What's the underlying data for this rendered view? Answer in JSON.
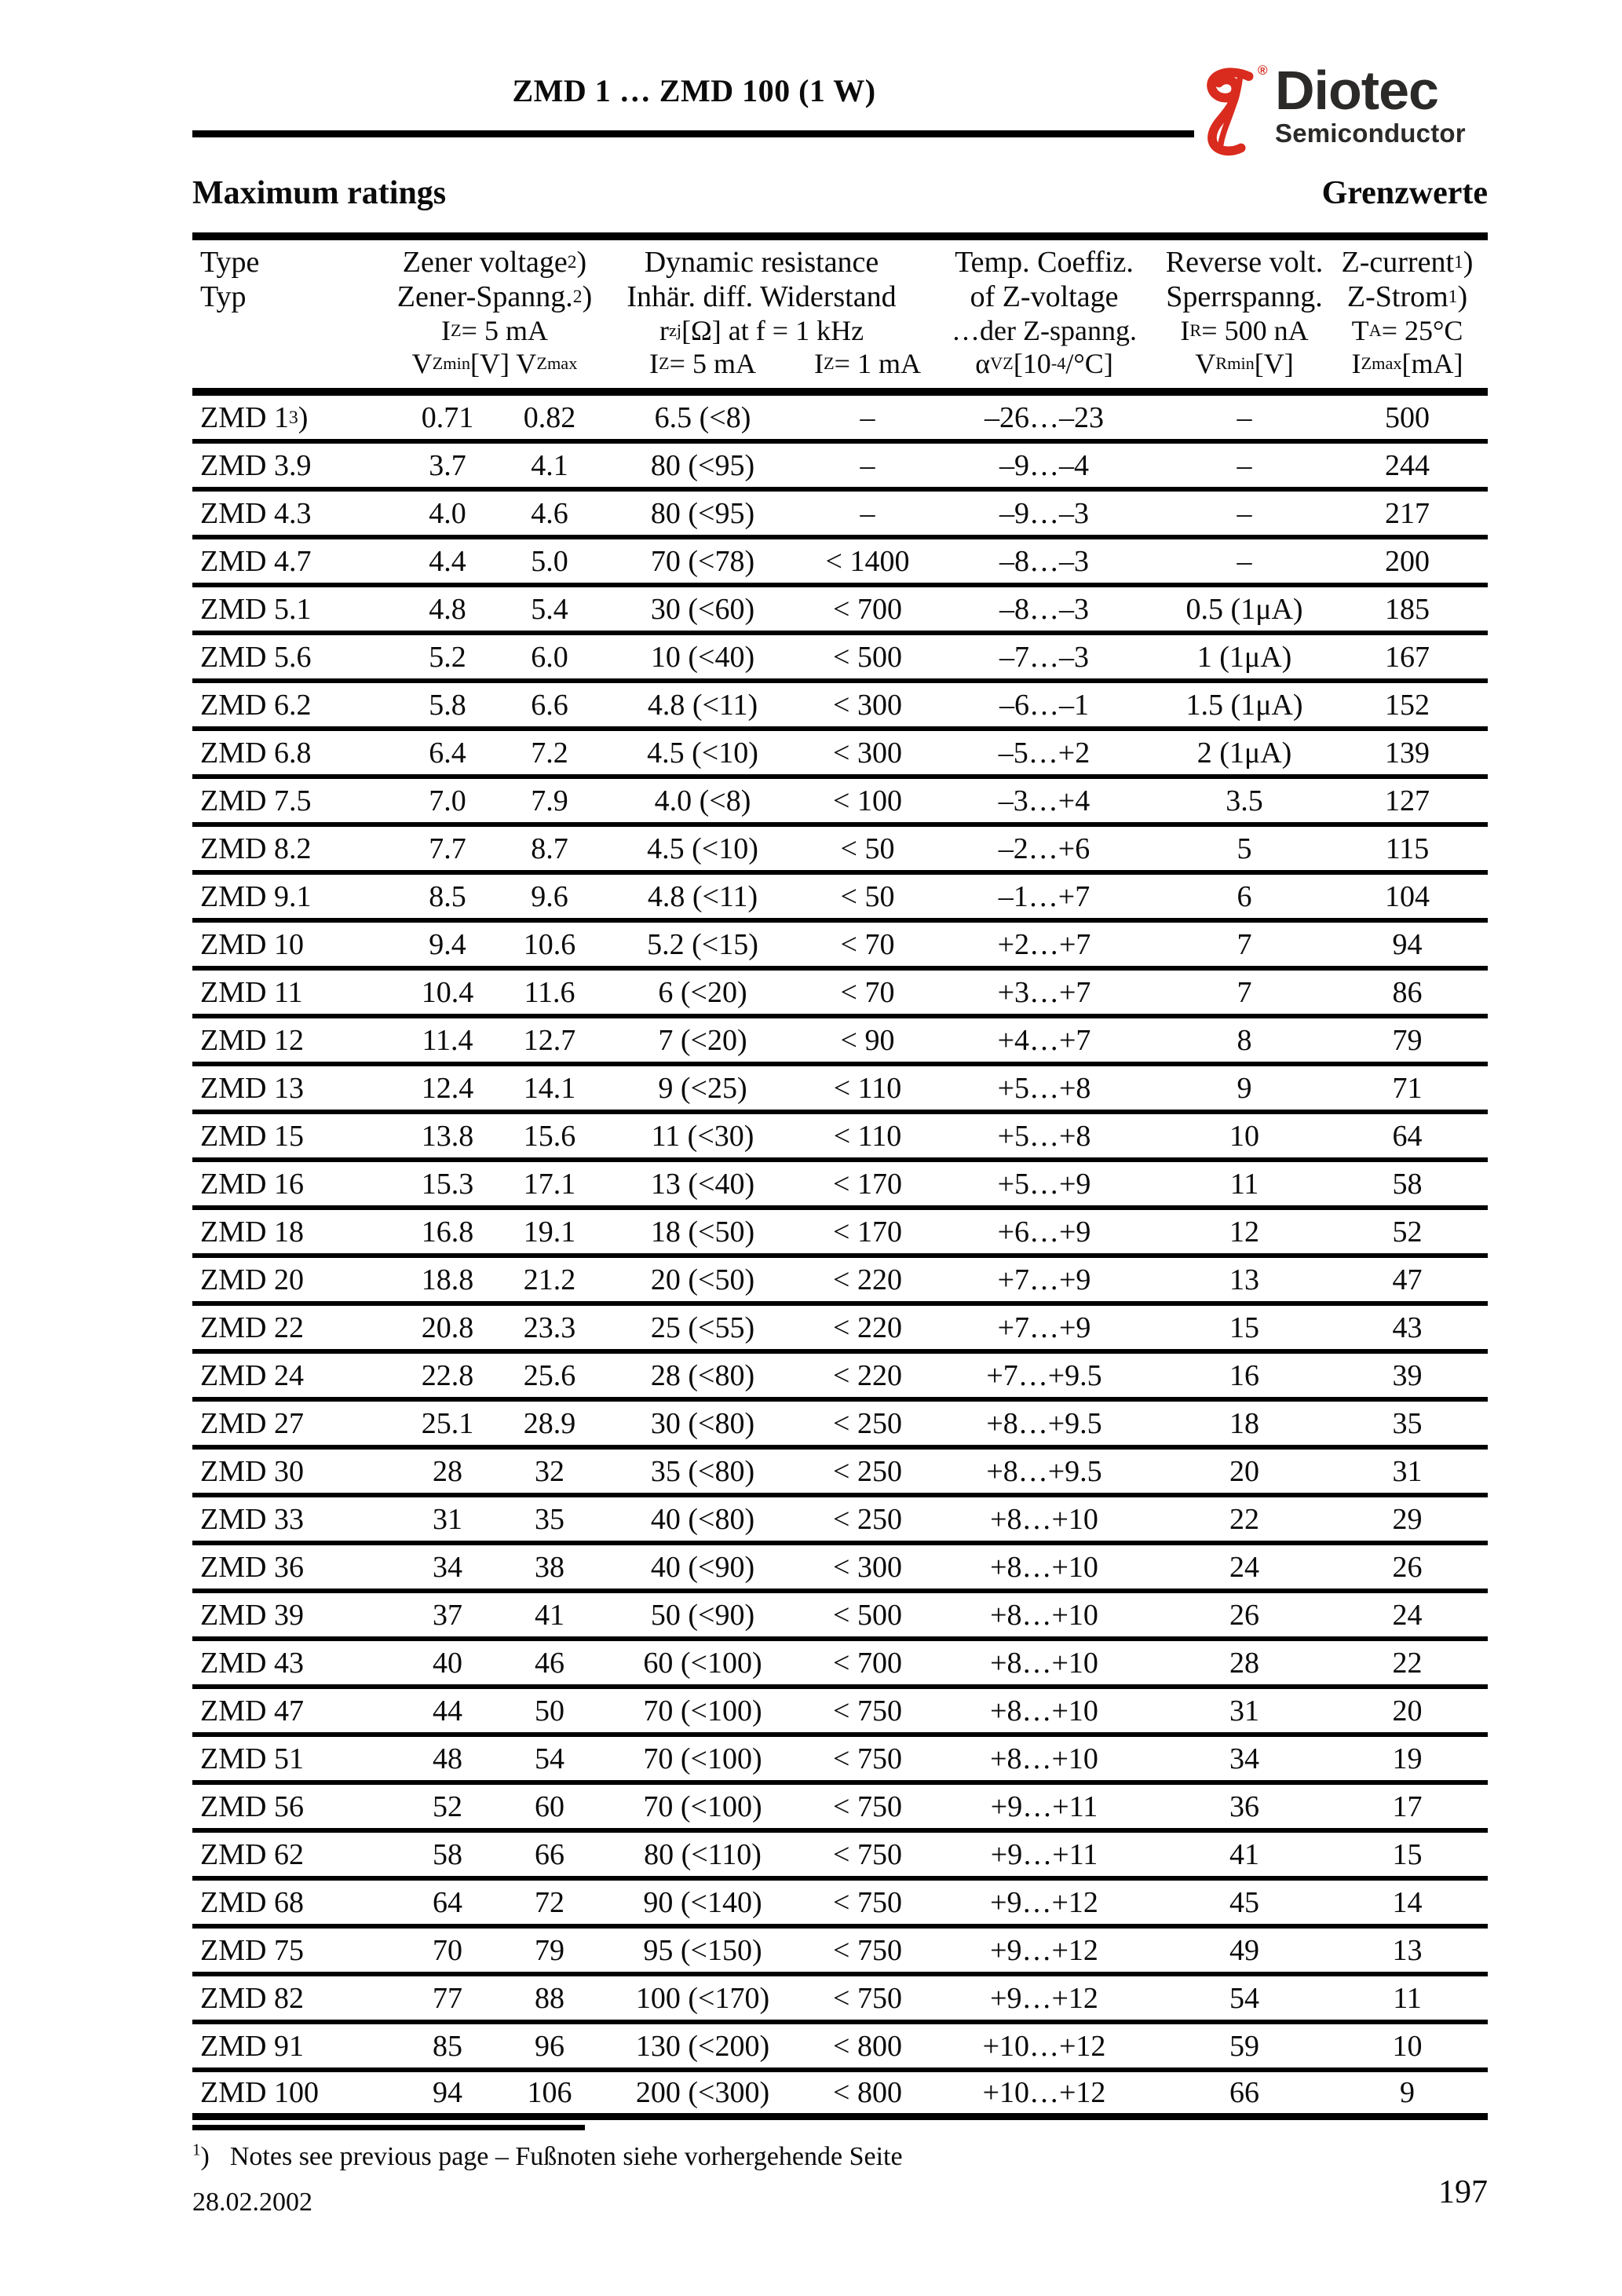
{
  "page": {
    "title": "ZMD 1 … ZMD 100 (1 W)",
    "section_left": "Maximum ratings",
    "section_right": "Grenzwerte",
    "footnote_marker": "^{1})",
    "footnote_text": "Notes see previous page – Fußnoten siehe vorhergehende Seite",
    "date": "28.02.2002",
    "page_number": "197"
  },
  "logo": {
    "name": "Diotec",
    "subtitle": "Semiconductor",
    "registered": "®",
    "red": "#d92b1e",
    "dark": "#2b2a29"
  },
  "table": {
    "header": {
      "type_l1": "Type",
      "type_l2": "Typ",
      "zener_l1": "Zener voltage ^{2})",
      "zener_l2": "Zener-Spanng.^{2})",
      "zener_l3": "I_{Z} = 5 mA",
      "zener_l4": "V_{Zmin}  [V]  V_{Zmax}",
      "dyn_l1": "Dynamic resistance",
      "dyn_l2": "Inhär. diff. Widerstand",
      "dyn_l3": "r_{zj} [Ω] at f = 1 kHz",
      "dyn_l4a": "I_{Z} = 5 mA",
      "dyn_l4b": "I_{Z} = 1 mA",
      "tc_l1": "Temp. Coeffiz.",
      "tc_l2": "of Z-voltage",
      "tc_l3": "…der Z-spanng.",
      "tc_l4": "α_{VZ} [10^{-4} /°C]",
      "rev_l1": "Reverse volt.",
      "rev_l2": "Sperrspanng.",
      "rev_l3": "I_{R} = 500 nA",
      "rev_l4": "V_{Rmin} [V]",
      "zc_l1": "Z-current ^{1})",
      "zc_l2": "Z-Strom ^{1})",
      "zc_l3": "T_{A} = 25°C",
      "zc_l4": "I_{Zmax} [mA]"
    },
    "rows": [
      [
        "ZMD 1 ^{3})",
        "0.71",
        "0.82",
        "6.5 (<8)",
        "–",
        "–26…–23",
        "–",
        "500"
      ],
      [
        "ZMD 3.9",
        "3.7",
        "4.1",
        "80 (<95)",
        "–",
        "–9…–4",
        "–",
        "244"
      ],
      [
        "ZMD 4.3",
        "4.0",
        "4.6",
        "80 (<95)",
        "–",
        "–9…–3",
        "–",
        "217"
      ],
      [
        "ZMD 4.7",
        "4.4",
        "5.0",
        "70 (<78)",
        "< 1400",
        "–8…–3",
        "–",
        "200"
      ],
      [
        "ZMD 5.1",
        "4.8",
        "5.4",
        "30 (<60)",
        "< 700",
        "–8…–3",
        "0.5 (1μA)",
        "185"
      ],
      [
        "ZMD 5.6",
        "5.2",
        "6.0",
        "10 (<40)",
        "< 500",
        "–7…–3",
        "1 (1μA)",
        "167"
      ],
      [
        "ZMD 6.2",
        "5.8",
        "6.6",
        "4.8 (<11)",
        "< 300",
        "–6…–1",
        "1.5 (1μA)",
        "152"
      ],
      [
        "ZMD 6.8",
        "6.4",
        "7.2",
        "4.5 (<10)",
        "< 300",
        "–5…+2",
        "2 (1μA)",
        "139"
      ],
      [
        "ZMD 7.5",
        "7.0",
        "7.9",
        "4.0 (<8)",
        "< 100",
        "–3…+4",
        "3.5",
        "127"
      ],
      [
        "ZMD 8.2",
        "7.7",
        "8.7",
        "4.5 (<10)",
        "< 50",
        "–2…+6",
        "5",
        "115"
      ],
      [
        "ZMD 9.1",
        "8.5",
        "9.6",
        "4.8 (<11)",
        "< 50",
        "–1…+7",
        "6",
        "104"
      ],
      [
        "ZMD 10",
        "9.4",
        "10.6",
        "5.2 (<15)",
        "< 70",
        "+2…+7",
        "7",
        "94"
      ],
      [
        "ZMD 11",
        "10.4",
        "11.6",
        "6 (<20)",
        "< 70",
        "+3…+7",
        "7",
        "86"
      ],
      [
        "ZMD 12",
        "11.4",
        "12.7",
        "7 (<20)",
        "< 90",
        "+4…+7",
        "8",
        "79"
      ],
      [
        "ZMD 13",
        "12.4",
        "14.1",
        "9 (<25)",
        "< 110",
        "+5…+8",
        "9",
        "71"
      ],
      [
        "ZMD 15",
        "13.8",
        "15.6",
        "11 (<30)",
        "< 110",
        "+5…+8",
        "10",
        "64"
      ],
      [
        "ZMD 16",
        "15.3",
        "17.1",
        "13 (<40)",
        "< 170",
        "+5…+9",
        "11",
        "58"
      ],
      [
        "ZMD 18",
        "16.8",
        "19.1",
        "18 (<50)",
        "< 170",
        "+6…+9",
        "12",
        "52"
      ],
      [
        "ZMD 20",
        "18.8",
        "21.2",
        "20 (<50)",
        "< 220",
        "+7…+9",
        "13",
        "47"
      ],
      [
        "ZMD 22",
        "20.8",
        "23.3",
        "25 (<55)",
        "< 220",
        "+7…+9",
        "15",
        "43"
      ],
      [
        "ZMD 24",
        "22.8",
        "25.6",
        "28 (<80)",
        "< 220",
        "+7…+9.5",
        "16",
        "39"
      ],
      [
        "ZMD 27",
        "25.1",
        "28.9",
        "30 (<80)",
        "< 250",
        "+8…+9.5",
        "18",
        "35"
      ],
      [
        "ZMD 30",
        "28",
        "32",
        "35 (<80)",
        "< 250",
        "+8…+9.5",
        "20",
        "31"
      ],
      [
        "ZMD 33",
        "31",
        "35",
        "40 (<80)",
        "< 250",
        "+8…+10",
        "22",
        "29"
      ],
      [
        "ZMD 36",
        "34",
        "38",
        "40 (<90)",
        "< 300",
        "+8…+10",
        "24",
        "26"
      ],
      [
        "ZMD 39",
        "37",
        "41",
        "50 (<90)",
        "< 500",
        "+8…+10",
        "26",
        "24"
      ],
      [
        "ZMD 43",
        "40",
        "46",
        "60 (<100)",
        "< 700",
        "+8…+10",
        "28",
        "22"
      ],
      [
        "ZMD 47",
        "44",
        "50",
        "70 (<100)",
        "< 750",
        "+8…+10",
        "31",
        "20"
      ],
      [
        "ZMD 51",
        "48",
        "54",
        "70 (<100)",
        "< 750",
        "+8…+10",
        "34",
        "19"
      ],
      [
        "ZMD 56",
        "52",
        "60",
        "70 (<100)",
        "< 750",
        "+9…+11",
        "36",
        "17"
      ],
      [
        "ZMD 62",
        "58",
        "66",
        "80 (<110)",
        "< 750",
        "+9…+11",
        "41",
        "15"
      ],
      [
        "ZMD 68",
        "64",
        "72",
        "90 (<140)",
        "< 750",
        "+9…+12",
        "45",
        "14"
      ],
      [
        "ZMD 75",
        "70",
        "79",
        "95 (<150)",
        "< 750",
        "+9…+12",
        "49",
        "13"
      ],
      [
        "ZMD 82",
        "77",
        "88",
        "100 (<170)",
        "< 750",
        "+9…+12",
        "54",
        "11"
      ],
      [
        "ZMD 91",
        "85",
        "96",
        "130 (<200)",
        "< 800",
        "+10…+12",
        "59",
        "10"
      ],
      [
        "ZMD 100",
        "94",
        "106",
        "200 (<300)",
        "< 800",
        "+10…+12",
        "66",
        "9"
      ]
    ]
  }
}
